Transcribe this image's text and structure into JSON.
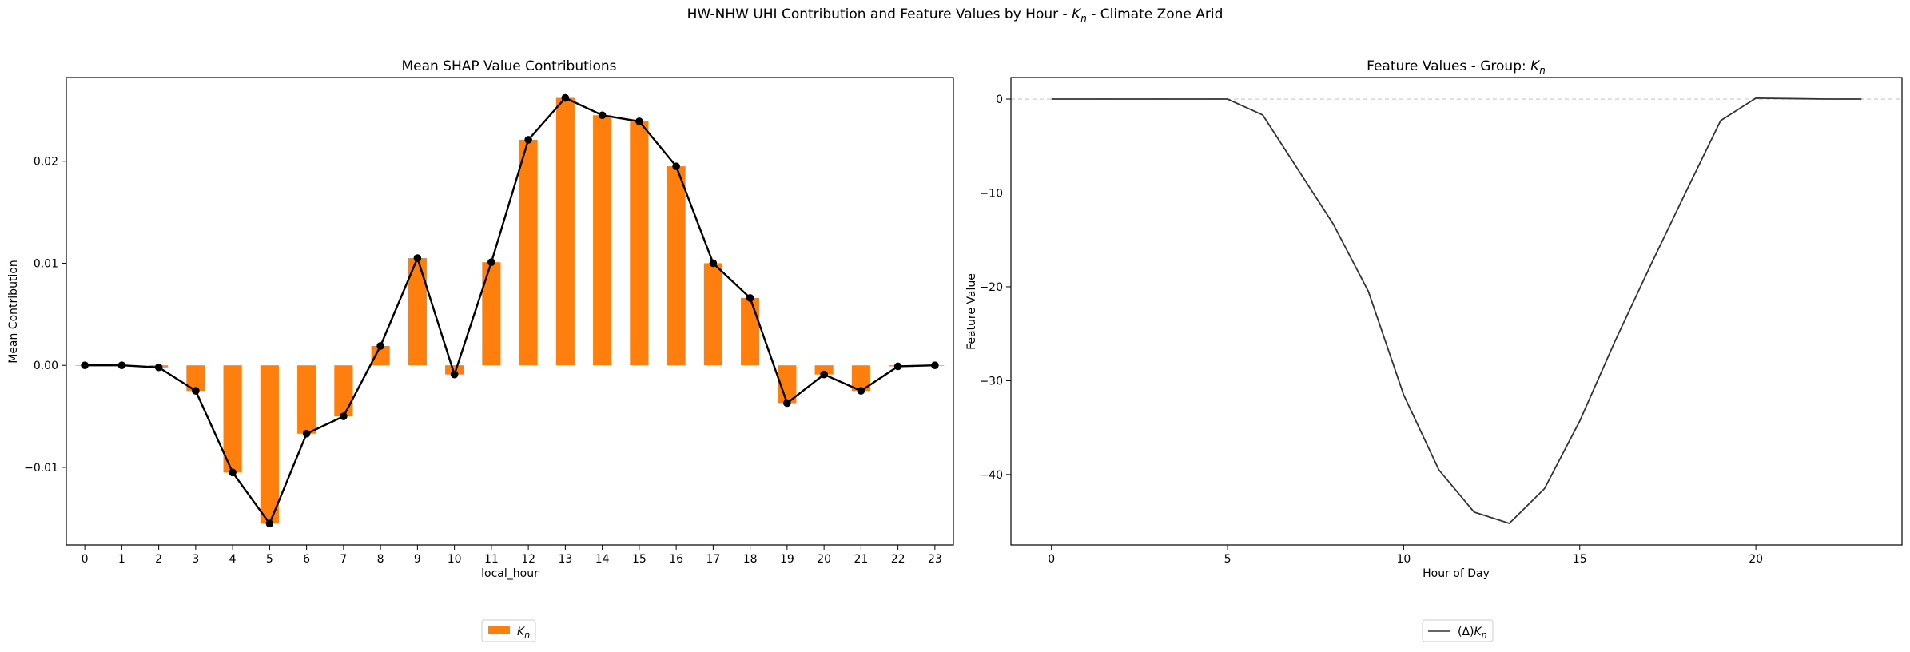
{
  "figure": {
    "title_prefix": "HW-NHW UHI Contribution and Feature Values by Hour - ",
    "title_feature_symbol": "K",
    "title_feature_sub": "n",
    "title_suffix": " - Climate Zone Arid"
  },
  "colors": {
    "bar": "#ff7f0e",
    "mean_line": "#000000",
    "feature_line": "#333333",
    "zero_line": "#c8c8c8"
  },
  "chart_data": [
    {
      "type": "bar",
      "title": "Mean SHAP Value Contributions",
      "xlabel": "local_hour",
      "ylabel": "Mean Contribution",
      "categories": [
        "0",
        "1",
        "2",
        "3",
        "4",
        "5",
        "6",
        "7",
        "8",
        "9",
        "10",
        "11",
        "12",
        "13",
        "14",
        "15",
        "16",
        "17",
        "18",
        "19",
        "20",
        "21",
        "22",
        "23"
      ],
      "series": [
        {
          "name": "K_n",
          "legend_symbol": "K",
          "legend_sub": "n",
          "values": [
            0.0,
            0.0,
            -0.0002,
            -0.0025,
            -0.0105,
            -0.0155,
            -0.0067,
            -0.005,
            0.0019,
            0.0105,
            -0.0009,
            0.0101,
            0.0221,
            0.0262,
            0.0245,
            0.0239,
            0.0195,
            0.01,
            0.0066,
            -0.0037,
            -0.0009,
            -0.0025,
            -0.0001,
            0.0
          ]
        }
      ],
      "mean_line_values": [
        0.0,
        0.0,
        -0.0002,
        -0.0025,
        -0.0105,
        -0.0155,
        -0.0067,
        -0.005,
        0.0019,
        0.0105,
        -0.0009,
        0.0101,
        0.0221,
        0.0262,
        0.0245,
        0.0239,
        0.0195,
        0.01,
        0.0066,
        -0.0037,
        -0.0009,
        -0.0025,
        -0.0001,
        0.0
      ],
      "yticks": [
        -0.01,
        0.0,
        0.01,
        0.02
      ],
      "ytick_labels": [
        "−0.01",
        "0.00",
        "0.01",
        "0.02"
      ],
      "ylim": [
        -0.0176,
        0.0282
      ],
      "legend_placement": "below center",
      "grid": false
    },
    {
      "type": "line",
      "title_prefix": "Feature Values - Group: ",
      "title_symbol": "K",
      "title_sub": "n",
      "xlabel": "Hour of Day",
      "ylabel": "Feature Value",
      "x": [
        0,
        1,
        2,
        3,
        4,
        5,
        6,
        7,
        8,
        9,
        10,
        11,
        12,
        13,
        14,
        15,
        16,
        17,
        18,
        19,
        20,
        21,
        22,
        23
      ],
      "series": [
        {
          "name": "(Δ)K_n",
          "legend_prefix": "(Δ)",
          "legend_symbol": "K",
          "legend_sub": "n",
          "values": [
            0,
            0,
            0,
            0,
            0,
            0,
            -1.7,
            -7.5,
            -13.3,
            -20.5,
            -31.5,
            -39.5,
            -44.0,
            -45.2,
            -41.5,
            -34.3,
            -25.8,
            -17.8,
            -10.0,
            -2.3,
            0.1,
            0.05,
            0.0,
            0.0
          ]
        }
      ],
      "xticks": [
        0,
        5,
        10,
        15,
        20
      ],
      "xtick_labels": [
        "0",
        "5",
        "10",
        "15",
        "20"
      ],
      "yticks": [
        -40,
        -30,
        -20,
        -10,
        0
      ],
      "ytick_labels": [
        "−40",
        "−30",
        "−20",
        "−10",
        "0"
      ],
      "xlim": [
        -1.15,
        24.15
      ],
      "ylim": [
        -47.5,
        2.3
      ],
      "zero_line": true,
      "legend_placement": "below center",
      "grid": false
    }
  ]
}
